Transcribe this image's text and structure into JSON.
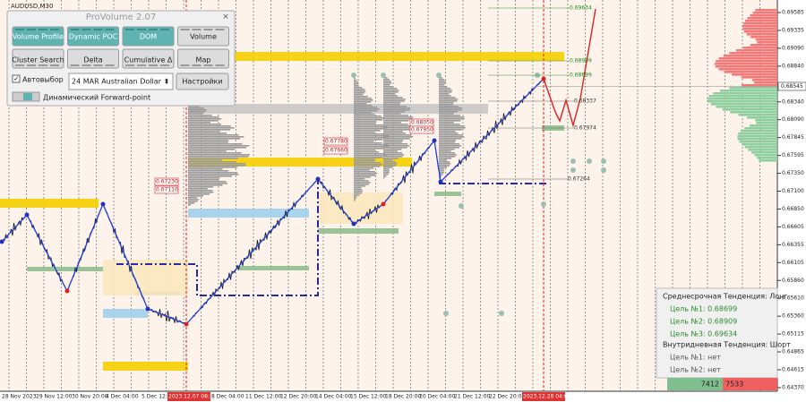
{
  "symbol": "AUDUSD,M30",
  "panel": {
    "title": "ProVolume 2.07",
    "buttons": [
      "Volume Profile",
      "Dynamic POC",
      "DOM",
      "Volume",
      "Cluster Search",
      "Delta",
      "Cumulative Δ",
      "Map"
    ],
    "autoselect": "Автовыбор",
    "instrument": "24 MAR Australian Dollar",
    "settings": "Настройки",
    "forward_point": "Динамический Forward-point"
  },
  "price_axis": [
    "0.69585",
    "0.69335",
    "0.69090",
    "0.68840",
    "0.68340",
    "0.68090",
    "0.67845",
    "0.67595",
    "0.67350",
    "0.67100",
    "0.66850",
    "0.66605",
    "0.66355",
    "0.66105",
    "0.65860",
    "0.65610",
    "0.65360",
    "0.65115",
    "0.64865",
    "0.64615",
    "0.64370"
  ],
  "current_price": "0.68545",
  "time_axis": [
    "28 Nov 2023",
    "29 Nov 12:00",
    "30 Nov 20:00",
    "4 Dec 04:00",
    "5 Dec 12:00",
    "2023.12.07 08:30",
    "8 Dec 04:00",
    "11 Dec 12:00",
    "12 Dec 20:00",
    "14 Dec 04:00",
    "15 Dec 12:00",
    "18 Dec 20:00",
    "20 Dec 04:00",
    "21 Dec 12:00",
    "22 Dec 20:00",
    "2023.12.28 04:00"
  ],
  "level_labels": [
    "0.69634",
    "0.68909",
    "0.68699",
    "0.68337",
    "0.67974",
    "0.67264"
  ],
  "zone_labels": [
    "0.68050",
    "0.67950",
    "0.67780",
    "0.67660",
    "0.67230",
    "0.67110"
  ],
  "trend_panel": {
    "mid_term": "Среднесрочная Тенденция: Лонг",
    "mid_targets": [
      "Цель №1: 0.68699",
      "Цель №2: 0.68909",
      "Цель №3: 0.69634"
    ],
    "intraday": "Внутридневная Тенденция: Шорт",
    "intraday_targets": [
      "Цель №1: нет",
      "Цель №2: нет"
    ]
  },
  "volume_bar": {
    "buy": "7412",
    "sell": "7533"
  }
}
